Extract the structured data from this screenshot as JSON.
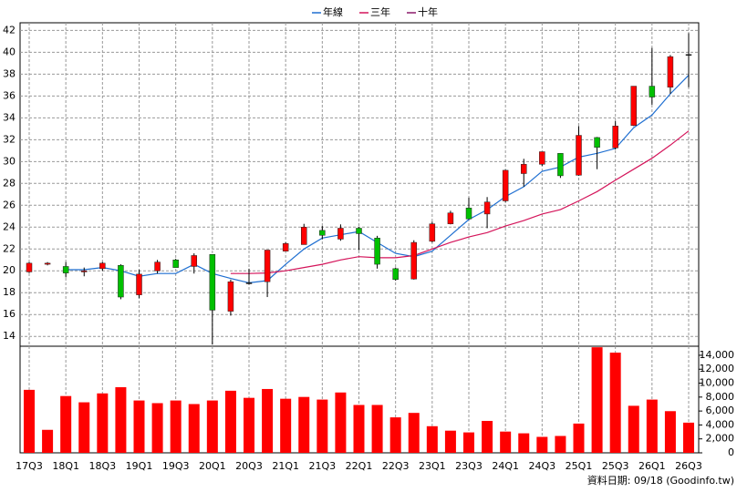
{
  "chart_data": {
    "type": "candlestick",
    "categories": [
      "17Q3",
      null,
      "18Q1",
      null,
      "18Q3",
      null,
      "19Q1",
      null,
      "19Q3",
      null,
      "20Q1",
      null,
      "20Q3",
      null,
      "21Q1",
      null,
      "21Q3",
      null,
      "22Q1",
      null,
      "22Q3",
      null,
      "23Q1",
      null,
      "23Q3",
      null,
      "24Q1",
      null,
      "24Q3",
      null,
      "25Q1",
      null,
      "25Q3",
      null,
      "26Q1",
      null,
      "26Q3"
    ],
    "ohlc": {
      "open": [
        19.9,
        20.6,
        20.4,
        19.9,
        20.2,
        20.5,
        17.8,
        20.0,
        21.0,
        20.4,
        21.5,
        16.3,
        18.9,
        19.0,
        21.8,
        22.4,
        23.7,
        22.9,
        23.9,
        23.0,
        20.2,
        19.25,
        22.7,
        24.3,
        25.75,
        25.2,
        26.4,
        28.9,
        29.75,
        30.75,
        28.75,
        32.2,
        31.25,
        33.3,
        36.9,
        36.8,
        39.8
      ],
      "high": [
        20.8,
        20.8,
        20.8,
        20.3,
        20.8,
        20.6,
        20.1,
        21.0,
        21.1,
        21.6,
        21.5,
        19.2,
        20.2,
        21.9,
        22.6,
        24.3,
        24.1,
        24.25,
        24.0,
        23.2,
        20.3,
        22.8,
        24.5,
        25.5,
        26.7,
        26.75,
        29.25,
        30.25,
        30.9,
        30.75,
        33.25,
        32.25,
        33.7,
        36.9,
        40.4,
        39.75,
        41.75
      ],
      "low": [
        19.8,
        20.5,
        19.4,
        19.5,
        20.0,
        17.4,
        17.5,
        19.75,
        20.3,
        19.75,
        13.25,
        15.9,
        18.75,
        17.6,
        21.8,
        22.4,
        22.9,
        22.75,
        21.9,
        20.2,
        19.1,
        19.2,
        22.6,
        24.25,
        24.7,
        23.9,
        26.3,
        27.7,
        29.6,
        28.5,
        28.7,
        29.3,
        31.1,
        33.25,
        35.2,
        36.2,
        36.8
      ],
      "close": [
        20.7,
        20.7,
        19.8,
        20.0,
        20.7,
        17.6,
        19.7,
        20.8,
        20.3,
        21.4,
        16.4,
        19.0,
        18.9,
        21.9,
        22.5,
        24.0,
        23.25,
        23.9,
        23.4,
        20.6,
        19.2,
        22.6,
        24.3,
        25.3,
        24.75,
        26.3,
        29.2,
        29.75,
        30.9,
        28.7,
        32.4,
        31.3,
        33.25,
        36.9,
        35.9,
        39.6,
        39.8
      ]
    },
    "up_color": "#ff0000",
    "down_color": "#00c000",
    "flat_color": "#000000",
    "series": [
      {
        "name": "年線",
        "color": "#1f6fd1",
        "values": [
          null,
          null,
          20.1,
          20.1,
          20.3,
          20.0,
          19.5,
          19.75,
          19.75,
          20.6,
          19.75,
          19.3,
          18.9,
          19.1,
          20.6,
          22.0,
          23.0,
          23.3,
          23.6,
          22.6,
          21.6,
          21.3,
          21.8,
          23.25,
          24.7,
          25.6,
          26.8,
          27.7,
          29.1,
          29.5,
          30.4,
          30.75,
          31.2,
          33.1,
          34.25,
          36.2,
          37.9
        ]
      },
      {
        "name": "三年",
        "color": "#d4145a",
        "values": [
          null,
          null,
          null,
          null,
          null,
          null,
          null,
          null,
          null,
          null,
          null,
          19.75,
          19.75,
          19.8,
          20.0,
          20.3,
          20.6,
          21.0,
          21.3,
          21.2,
          21.2,
          21.4,
          22.0,
          22.6,
          23.1,
          23.5,
          24.1,
          24.6,
          25.2,
          25.6,
          26.4,
          27.25,
          28.3,
          29.3,
          30.3,
          31.5,
          32.8
        ]
      },
      {
        "name": "十年",
        "color": "#8b1a6b",
        "values": [
          null,
          null,
          null,
          null,
          null,
          null,
          null,
          null,
          null,
          null,
          null,
          null,
          null,
          null,
          null,
          null,
          null,
          null,
          null,
          null,
          null,
          null,
          null,
          null,
          null,
          null,
          null,
          null,
          null,
          null,
          null,
          null,
          null,
          null,
          null,
          null,
          null
        ]
      }
    ],
    "volume": {
      "type": "bar",
      "axis": "y2",
      "color": "#ff0000",
      "values": [
        9040,
        3300,
        8150,
        7250,
        8530,
        9420,
        7510,
        7130,
        7510,
        7000,
        7510,
        8910,
        7890,
        9160,
        7760,
        8020,
        7640,
        8660,
        6870,
        6870,
        5090,
        5730,
        3820,
        3180,
        2930,
        4580,
        3050,
        2800,
        2290,
        2420,
        4200,
        15150,
        14380,
        6750,
        7640,
        5980,
        4330
      ]
    },
    "ylim": [
      13.1,
      42.7
    ],
    "yticks": [
      14,
      16,
      18,
      20,
      22,
      24,
      26,
      28,
      30,
      32,
      34,
      36,
      38,
      40,
      42
    ],
    "y2lim": [
      0,
      15300
    ],
    "y2ticks": [
      0,
      {
        "value": 2000,
        "label": "2,000"
      },
      {
        "value": 4000,
        "label": "4,000"
      },
      {
        "value": 6000,
        "label": "6,000"
      },
      {
        "value": 8000,
        "label": "8,000"
      },
      {
        "value": 10000,
        "label": "10,000"
      },
      {
        "value": 12000,
        "label": "12,000"
      },
      {
        "value": 14000,
        "label": "14,000"
      }
    ],
    "grid": true,
    "legend": "top",
    "footer": "資料日期: 09/18 (Goodinfo.tw)"
  }
}
